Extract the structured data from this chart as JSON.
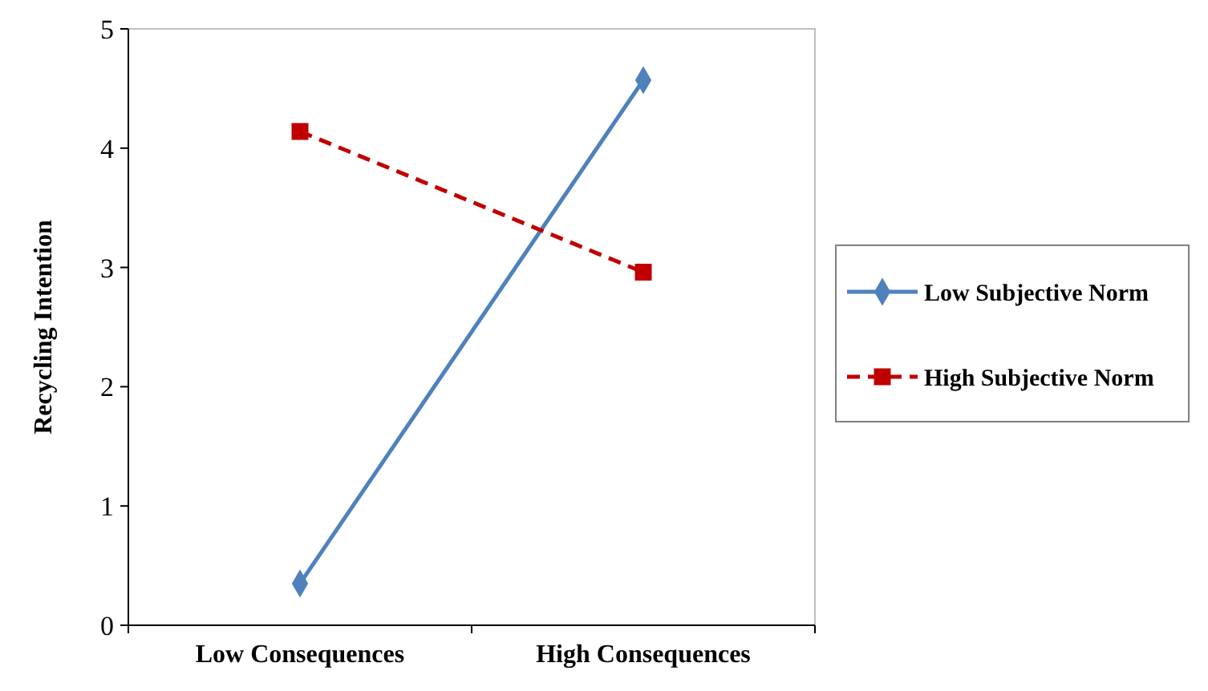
{
  "chart_data": {
    "type": "line",
    "ylabel": "Recycling Intention",
    "categories": [
      "Low Consequences",
      "High Consequences"
    ],
    "series": [
      {
        "name": "Low Subjective Norm",
        "color": "#4f81bd",
        "values": [
          0.35,
          4.57
        ],
        "marker": "diamond",
        "line_style": "solid"
      },
      {
        "name": "High Subjective Norm",
        "color": "#c00000",
        "values": [
          4.14,
          2.96
        ],
        "marker": "square",
        "line_style": "dashed"
      }
    ],
    "ylim": [
      0,
      5
    ],
    "yticks": [
      0,
      1,
      2,
      3,
      4,
      5
    ],
    "grid": false,
    "legend": "right"
  }
}
